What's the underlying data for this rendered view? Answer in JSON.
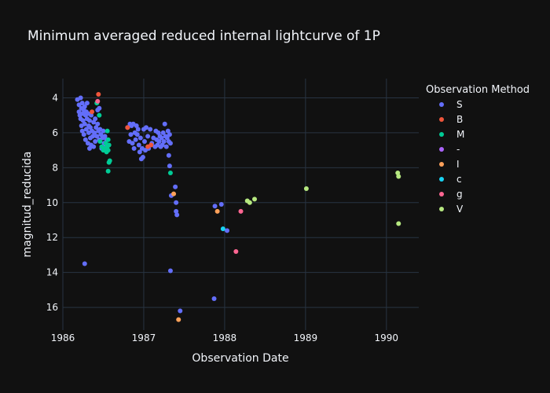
{
  "chart_data": {
    "type": "scatter",
    "title": "Minimum averaged reduced internal lightcurve of 1P",
    "xlabel": "Observation Date",
    "ylabel": "magnitud_reducida",
    "xlim": [
      1986.0,
      1990.4
    ],
    "ylim": [
      17.3,
      2.9
    ],
    "y_reversed": true,
    "x_ticks": [
      1986,
      1987,
      1988,
      1989,
      1990
    ],
    "x_tick_labels": [
      "1986",
      "1987",
      "1988",
      "1989",
      "1990"
    ],
    "y_ticks": [
      4,
      6,
      8,
      10,
      12,
      14,
      16
    ],
    "grid": true,
    "legend": {
      "title": "Observation Method",
      "position": "right"
    },
    "series": [
      {
        "name": "S",
        "color": "#636efa",
        "points": [
          [
            1986.18,
            4.1
          ],
          [
            1986.2,
            4.4
          ],
          [
            1986.2,
            4.8
          ],
          [
            1986.21,
            5.0
          ],
          [
            1986.22,
            4.0
          ],
          [
            1986.22,
            5.2
          ],
          [
            1986.23,
            4.6
          ],
          [
            1986.23,
            5.6
          ],
          [
            1986.24,
            4.3
          ],
          [
            1986.24,
            5.9
          ],
          [
            1986.25,
            4.9
          ],
          [
            1986.25,
            5.3
          ],
          [
            1986.26,
            6.1
          ],
          [
            1986.26,
            4.7
          ],
          [
            1986.27,
            5.5
          ],
          [
            1986.27,
            4.5
          ],
          [
            1986.28,
            5.0
          ],
          [
            1986.28,
            6.4
          ],
          [
            1986.29,
            4.8
          ],
          [
            1986.29,
            5.8
          ],
          [
            1986.3,
            4.3
          ],
          [
            1986.3,
            5.2
          ],
          [
            1986.31,
            6.6
          ],
          [
            1986.31,
            4.9
          ],
          [
            1986.32,
            5.6
          ],
          [
            1986.32,
            6.0
          ],
          [
            1986.33,
            5.3
          ],
          [
            1986.33,
            6.9
          ],
          [
            1986.34,
            5.7
          ],
          [
            1986.34,
            6.3
          ],
          [
            1986.35,
            5.0
          ],
          [
            1986.35,
            6.7
          ],
          [
            1986.36,
            5.9
          ],
          [
            1986.37,
            6.2
          ],
          [
            1986.38,
            6.8
          ],
          [
            1986.38,
            5.4
          ],
          [
            1986.39,
            6.0
          ],
          [
            1986.4,
            5.2
          ],
          [
            1986.4,
            6.5
          ],
          [
            1986.41,
            5.7
          ],
          [
            1986.42,
            6.2
          ],
          [
            1986.43,
            5.5
          ],
          [
            1986.43,
            4.7
          ],
          [
            1986.44,
            5.9
          ],
          [
            1986.45,
            6.4
          ],
          [
            1986.45,
            4.6
          ],
          [
            1986.46,
            5.8
          ],
          [
            1986.47,
            6.1
          ],
          [
            1986.48,
            6.9
          ],
          [
            1986.49,
            6.3
          ],
          [
            1986.5,
            5.9
          ],
          [
            1986.51,
            6.6
          ],
          [
            1986.52,
            6.2
          ],
          [
            1986.53,
            6.7
          ],
          [
            1986.54,
            6.4
          ],
          [
            1986.27,
            13.5
          ],
          [
            1986.8,
            5.7
          ],
          [
            1986.82,
            6.5
          ],
          [
            1986.83,
            5.5
          ],
          [
            1986.84,
            6.1
          ],
          [
            1986.85,
            5.6
          ],
          [
            1986.86,
            6.6
          ],
          [
            1986.87,
            5.5
          ],
          [
            1986.88,
            6.9
          ],
          [
            1986.89,
            6.0
          ],
          [
            1986.9,
            6.4
          ],
          [
            1986.91,
            5.6
          ],
          [
            1986.92,
            6.1
          ],
          [
            1986.93,
            5.8
          ],
          [
            1986.94,
            6.7
          ],
          [
            1986.95,
            7.1
          ],
          [
            1986.96,
            6.3
          ],
          [
            1986.97,
            7.5
          ],
          [
            1986.98,
            6.9
          ],
          [
            1986.99,
            7.4
          ],
          [
            1987.0,
            5.8
          ],
          [
            1987.01,
            6.5
          ],
          [
            1987.02,
            7.0
          ],
          [
            1987.03,
            5.7
          ],
          [
            1987.05,
            6.2
          ],
          [
            1987.06,
            6.9
          ],
          [
            1987.08,
            5.8
          ],
          [
            1987.1,
            6.6
          ],
          [
            1987.12,
            6.3
          ],
          [
            1987.14,
            6.8
          ],
          [
            1987.15,
            5.9
          ],
          [
            1987.16,
            6.4
          ],
          [
            1987.17,
            6.7
          ],
          [
            1987.18,
            6.0
          ],
          [
            1987.19,
            6.5
          ],
          [
            1987.2,
            6.2
          ],
          [
            1987.21,
            6.8
          ],
          [
            1987.22,
            6.3
          ],
          [
            1987.23,
            6.7
          ],
          [
            1987.24,
            6.0
          ],
          [
            1987.25,
            6.5
          ],
          [
            1987.26,
            5.5
          ],
          [
            1987.27,
            6.2
          ],
          [
            1987.28,
            6.8
          ],
          [
            1987.29,
            6.3
          ],
          [
            1987.3,
            5.9
          ],
          [
            1987.31,
            6.5
          ],
          [
            1987.32,
            6.1
          ],
          [
            1987.33,
            6.6
          ],
          [
            1987.31,
            7.3
          ],
          [
            1987.32,
            7.9
          ],
          [
            1987.39,
            9.1
          ],
          [
            1987.4,
            10.5
          ],
          [
            1987.41,
            10.7
          ],
          [
            1987.4,
            10.0
          ],
          [
            1987.34,
            9.6
          ],
          [
            1987.33,
            13.9
          ],
          [
            1987.45,
            16.2
          ],
          [
            1987.88,
            10.2
          ],
          [
            1987.96,
            10.1
          ],
          [
            1988.03,
            11.6
          ],
          [
            1987.87,
            15.5
          ]
        ]
      },
      {
        "name": "B",
        "color": "#ef553b",
        "points": [
          [
            1986.36,
            4.8
          ],
          [
            1986.44,
            3.8
          ],
          [
            1986.8,
            5.7
          ],
          [
            1987.05,
            6.8
          ],
          [
            1987.09,
            6.7
          ]
        ]
      },
      {
        "name": "M",
        "color": "#00cc96",
        "points": [
          [
            1986.42,
            4.3
          ],
          [
            1986.45,
            5.0
          ],
          [
            1986.46,
            6.5
          ],
          [
            1986.48,
            6.8
          ],
          [
            1986.5,
            7.0
          ],
          [
            1986.52,
            6.9
          ],
          [
            1986.53,
            6.6
          ],
          [
            1986.54,
            7.1
          ],
          [
            1986.55,
            6.8
          ],
          [
            1986.55,
            5.9
          ],
          [
            1986.56,
            6.4
          ],
          [
            1986.56,
            7.0
          ],
          [
            1986.57,
            7.7
          ],
          [
            1986.57,
            6.7
          ],
          [
            1986.58,
            7.6
          ],
          [
            1986.56,
            8.2
          ],
          [
            1987.33,
            8.3
          ]
        ]
      },
      {
        "name": "-",
        "color": "#ab63fa",
        "points": []
      },
      {
        "name": "I",
        "color": "#ffa15a",
        "points": [
          [
            1987.37,
            9.5
          ],
          [
            1987.43,
            16.7
          ],
          [
            1987.91,
            10.5
          ]
        ]
      },
      {
        "name": "c",
        "color": "#19d3f3",
        "points": [
          [
            1987.98,
            11.5
          ]
        ]
      },
      {
        "name": "g",
        "color": "#ff6692",
        "points": [
          [
            1988.14,
            12.8
          ],
          [
            1988.2,
            10.5
          ],
          [
            1986.43,
            4.2
          ]
        ]
      },
      {
        "name": "V",
        "color": "#b6e880",
        "points": [
          [
            1988.28,
            9.9
          ],
          [
            1988.31,
            10.0
          ],
          [
            1988.37,
            9.8
          ],
          [
            1989.01,
            9.2
          ],
          [
            1990.14,
            8.3
          ],
          [
            1990.15,
            8.5
          ],
          [
            1990.15,
            11.2
          ]
        ]
      }
    ]
  }
}
